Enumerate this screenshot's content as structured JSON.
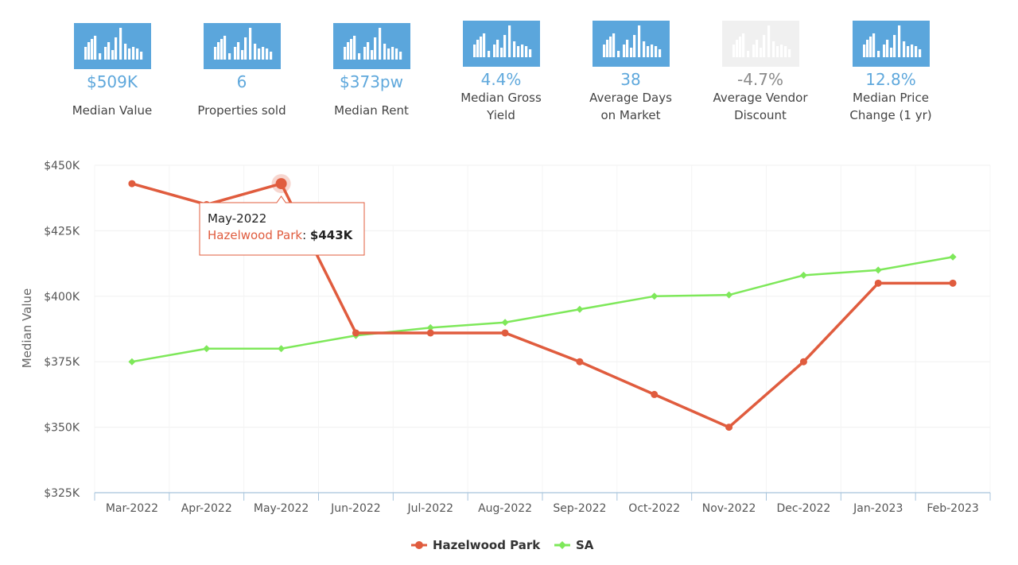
{
  "colors": {
    "accent_blue": "#5ba6dc",
    "hazelwood": "#e05c3e",
    "sa": "#7ee85a",
    "icon_muted": "#f0f0f0",
    "value_muted": "#8a8a8a"
  },
  "stats": [
    {
      "icon": "bar-chart-icon",
      "value": "$509K",
      "label": "Median Value",
      "muted": false
    },
    {
      "icon": "bar-chart-icon",
      "value": "6",
      "label": "Properties sold",
      "muted": false
    },
    {
      "icon": "bar-chart-icon",
      "value": "$373pw",
      "label": "Median Rent",
      "muted": false
    },
    {
      "icon": "bar-chart-icon",
      "value": "4.4%",
      "label": "Median Gross\nYield",
      "muted": false
    },
    {
      "icon": "bar-chart-icon",
      "value": "38",
      "label": "Average Days\non Market",
      "muted": false
    },
    {
      "icon": "bar-chart-icon",
      "value": "-4.7%",
      "label": "Average Vendor\nDiscount",
      "muted": true
    },
    {
      "icon": "bar-chart-icon",
      "value": "12.8%",
      "label": "Median Price\nChange (1 yr)",
      "muted": false
    }
  ],
  "chart_data": {
    "type": "line",
    "title": "",
    "xlabel": "",
    "ylabel": "Median Value",
    "ylim": [
      325000,
      450000
    ],
    "y_ticks": [
      325000,
      350000,
      375000,
      400000,
      425000,
      450000
    ],
    "y_tick_labels": [
      "$325K",
      "$350K",
      "$375K",
      "$400K",
      "$425K",
      "$450K"
    ],
    "categories": [
      "Mar-2022",
      "Apr-2022",
      "May-2022",
      "Jun-2022",
      "Jul-2022",
      "Aug-2022",
      "Sep-2022",
      "Oct-2022",
      "Nov-2022",
      "Dec-2022",
      "Jan-2023",
      "Feb-2023"
    ],
    "series": [
      {
        "name": "Hazelwood Park",
        "color": "#e05c3e",
        "marker": "circle",
        "values": [
          443000,
          435000,
          443000,
          386000,
          386000,
          386000,
          375000,
          362500,
          350000,
          375000,
          405000,
          405000
        ]
      },
      {
        "name": "SA",
        "color": "#7ee85a",
        "marker": "diamond",
        "values": [
          375000,
          380000,
          380000,
          385000,
          388000,
          390000,
          395000,
          400000,
          400500,
          408000,
          410000,
          415000
        ]
      }
    ],
    "legend": "bottom-center",
    "grid": true,
    "tooltip": {
      "title": "May-2022",
      "series_name": "Hazelwood Park",
      "value_label": "$443K",
      "category_index": 2,
      "series_index": 0
    }
  }
}
